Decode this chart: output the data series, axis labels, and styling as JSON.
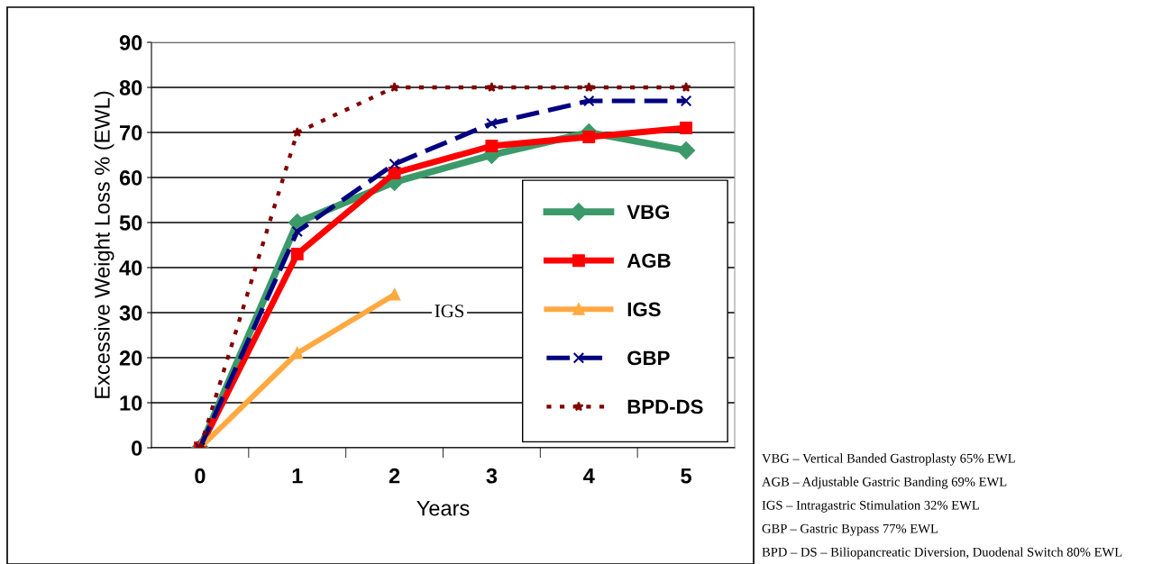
{
  "chart_data": {
    "type": "line",
    "xlabel": "Years",
    "ylabel": "Excessive Weight Loss % (EWL)",
    "categories": [
      "0",
      "1",
      "2",
      "3",
      "4",
      "5"
    ],
    "ylim": [
      0,
      90
    ],
    "yticks": [
      0,
      10,
      20,
      30,
      40,
      50,
      60,
      70,
      80,
      90
    ],
    "grid": "y",
    "legend": "right",
    "series": [
      {
        "name": "VBG",
        "color": "#3c9a6a",
        "marker": "diamond",
        "line_style": "solid",
        "values": [
          0,
          50,
          59,
          65,
          70,
          66
        ]
      },
      {
        "name": "AGB",
        "color": "#ff0000",
        "marker": "square",
        "line_style": "solid",
        "values": [
          0,
          43,
          61,
          67,
          69,
          71
        ]
      },
      {
        "name": "IGS",
        "color": "#ffa940",
        "marker": "triangle",
        "line_style": "solid",
        "values": [
          0,
          21,
          34,
          null,
          null,
          null
        ]
      },
      {
        "name": "GBP",
        "color": "#000080",
        "marker": "cross",
        "line_style": "dashed",
        "values": [
          0,
          48,
          63,
          72,
          77,
          77
        ]
      },
      {
        "name": "BPD-DS",
        "color": "#800000",
        "marker": "star",
        "line_style": "dotted",
        "values": [
          0,
          70,
          80,
          80,
          80,
          80
        ]
      }
    ],
    "annotations": [
      "IGS",
      "VBG – Vertical Banded Gastroplasty 65% EWL",
      "AGB – Adjustable Gastric Banding 69% EWL",
      "IGS – Intragastric Stimulation 32% EWL",
      "GBP – Gastric Bypass 77% EWL",
      "BPD – DS – Biliopancreatic Diversion, Duodenal Switch 80% EWL"
    ]
  }
}
